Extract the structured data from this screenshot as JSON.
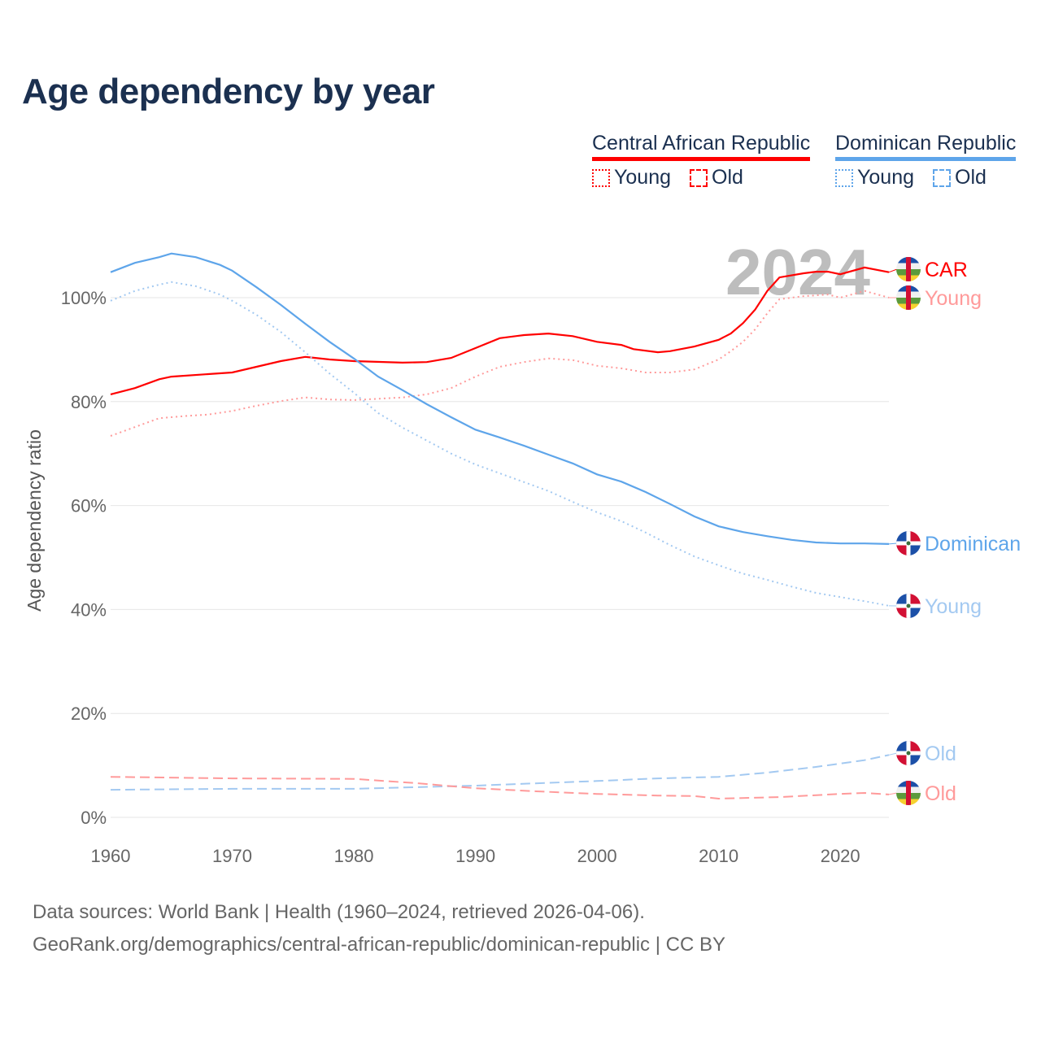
{
  "title": "Age dependency by year",
  "legend": {
    "countries": [
      {
        "name": "Central African Republic",
        "color": "#ff0000",
        "young_label": "Young",
        "old_label": "Old"
      },
      {
        "name": "Dominican Republic",
        "color": "#5ea5ea",
        "young_label": "Young",
        "old_label": "Old"
      }
    ]
  },
  "footer": {
    "sources": "Data sources: World Bank | Health (1960–2024, retrieved 2026-04-06).",
    "url": "GeoRank.org/demographics/central-african-republic/dominican-republic | CC BY"
  },
  "chart_data": {
    "type": "line",
    "title": "Age dependency by year",
    "xlabel": "",
    "ylabel": "Age dependency ratio",
    "xlim": [
      1960,
      2024
    ],
    "ylim": [
      0,
      110
    ],
    "yticks": [
      "0%",
      "20%",
      "40%",
      "60%",
      "80%",
      "100%"
    ],
    "ytick_values": [
      0,
      20,
      40,
      60,
      80,
      100
    ],
    "xticks": [
      "1960",
      "1970",
      "1980",
      "1990",
      "2000",
      "2010",
      "2020"
    ],
    "year_watermark": "2024",
    "grid": true,
    "legend_position": "top-right",
    "series": [
      {
        "name": "Central African Republic",
        "end_label": "CAR",
        "color": "#ff0000",
        "style": "solid",
        "flag": "car",
        "x": [
          1960,
          1962,
          1964,
          1965,
          1970,
          1972,
          1974,
          1976,
          1978,
          1980,
          1984,
          1986,
          1988,
          1990,
          1992,
          1994,
          1996,
          1998,
          2000,
          2002,
          2003,
          2005,
          2006,
          2008,
          2010,
          2011,
          2012,
          2013,
          2014,
          2015,
          2017,
          2018,
          2019,
          2020,
          2022,
          2024
        ],
        "y": [
          81.4,
          82.6,
          84.3,
          84.8,
          85.6,
          86.7,
          87.8,
          88.6,
          88.1,
          87.8,
          87.5,
          87.6,
          88.4,
          90.3,
          92.2,
          92.8,
          93.1,
          92.6,
          91.5,
          90.9,
          90.1,
          89.5,
          89.7,
          90.6,
          91.9,
          93.1,
          95.1,
          97.7,
          101.3,
          103.9,
          104.7,
          105.0,
          105.0,
          104.5,
          105.8,
          104.9
        ]
      },
      {
        "name": "Central African Republic Young",
        "end_label": "Young",
        "color": "#ff9a9a",
        "style": "dotted",
        "flag": "car",
        "x": [
          1960,
          1964,
          1966,
          1968,
          1970,
          1972,
          1974,
          1976,
          1978,
          1980,
          1984,
          1986,
          1988,
          1990,
          1992,
          1994,
          1996,
          1998,
          2000,
          2002,
          2004,
          2006,
          2008,
          2010,
          2011,
          2012,
          2013,
          2014,
          2015,
          2017,
          2019,
          2020,
          2022,
          2024
        ],
        "y": [
          73.4,
          76.8,
          77.2,
          77.5,
          78.2,
          79.2,
          80.1,
          80.8,
          80.4,
          80.3,
          80.8,
          81.4,
          82.6,
          84.8,
          86.7,
          87.6,
          88.3,
          88.0,
          86.9,
          86.4,
          85.6,
          85.6,
          86.2,
          88.1,
          89.7,
          91.5,
          93.9,
          97.0,
          99.7,
          100.3,
          100.6,
          100.0,
          101.3,
          100.0
        ]
      },
      {
        "name": "Dominican Republic",
        "end_label": "Dominican",
        "color": "#5ea5ea",
        "style": "solid",
        "flag": "dr",
        "x": [
          1960,
          1962,
          1964,
          1965,
          1967,
          1969,
          1970,
          1972,
          1974,
          1976,
          1978,
          1980,
          1982,
          1984,
          1986,
          1988,
          1990,
          1992,
          1994,
          1996,
          1998,
          2000,
          2002,
          2004,
          2006,
          2008,
          2010,
          2012,
          2014,
          2016,
          2018,
          2020,
          2022,
          2024
        ],
        "y": [
          104.9,
          106.7,
          107.8,
          108.5,
          107.8,
          106.3,
          105.2,
          102.0,
          98.6,
          95.0,
          91.5,
          88.3,
          84.8,
          82.2,
          79.5,
          77.0,
          74.6,
          73.1,
          71.5,
          69.8,
          68.1,
          66.0,
          64.6,
          62.6,
          60.3,
          57.9,
          56.0,
          54.9,
          54.1,
          53.4,
          52.9,
          52.7,
          52.7,
          52.6
        ]
      },
      {
        "name": "Dominican Republic Young",
        "end_label": "Young",
        "color": "#a3c9f1",
        "style": "dotted",
        "flag": "dr",
        "x": [
          1960,
          1962,
          1964,
          1965,
          1967,
          1969,
          1970,
          1972,
          1974,
          1976,
          1978,
          1980,
          1982,
          1984,
          1986,
          1988,
          1990,
          1992,
          1994,
          1996,
          1998,
          2000,
          2002,
          2004,
          2006,
          2008,
          2010,
          2012,
          2014,
          2016,
          2018,
          2020,
          2022,
          2024
        ],
        "y": [
          99.4,
          101.3,
          102.5,
          103.0,
          102.2,
          100.6,
          99.4,
          96.7,
          93.4,
          89.5,
          85.4,
          81.7,
          77.8,
          75.0,
          72.5,
          70.0,
          67.9,
          66.2,
          64.5,
          62.8,
          60.7,
          58.7,
          57.0,
          54.8,
          52.4,
          50.2,
          48.5,
          46.9,
          45.7,
          44.4,
          43.2,
          42.4,
          41.6,
          40.7
        ]
      },
      {
        "name": "Dominican Republic Old",
        "end_label": "Old",
        "color": "#a3c9f1",
        "style": "dashed",
        "flag": "dr",
        "x": [
          1960,
          1970,
          1980,
          1990,
          2000,
          2005,
          2010,
          2014,
          2018,
          2022,
          2024
        ],
        "y": [
          5.3,
          5.5,
          5.5,
          6.1,
          7.0,
          7.5,
          7.8,
          8.6,
          9.7,
          11.0,
          12.0
        ]
      },
      {
        "name": "Central African Republic Old",
        "end_label": "Old",
        "color": "#ff9a9a",
        "style": "dashed",
        "flag": "car",
        "x": [
          1960,
          1970,
          1980,
          1985,
          1990,
          1995,
          2000,
          2005,
          2008,
          2010,
          2015,
          2020,
          2022,
          2024
        ],
        "y": [
          7.8,
          7.5,
          7.4,
          6.6,
          5.6,
          5.0,
          4.5,
          4.2,
          4.1,
          3.6,
          3.9,
          4.5,
          4.7,
          4.4
        ]
      }
    ]
  }
}
